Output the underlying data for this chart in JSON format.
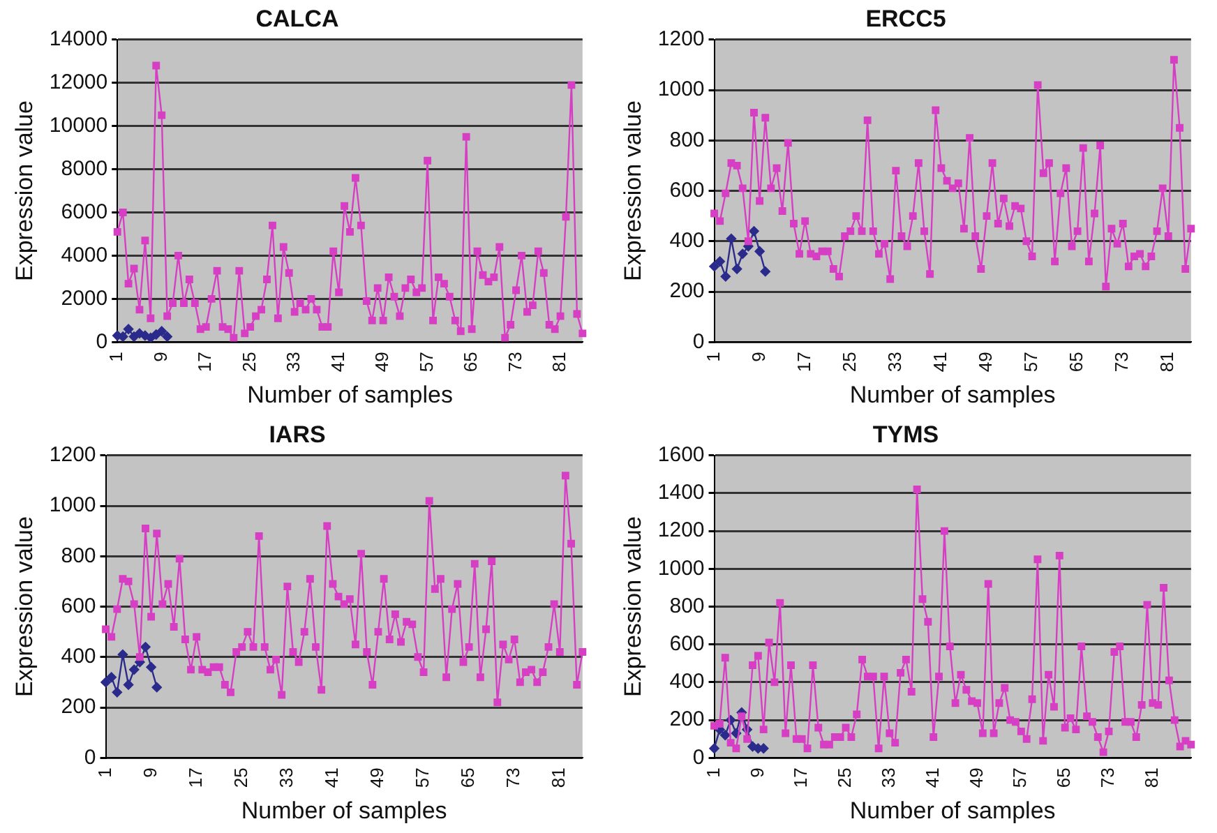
{
  "chart_data": [
    {
      "type": "line",
      "title": "CALCA",
      "xlabel": "Number of samples",
      "ylabel": "Expression value",
      "ylim": [
        0,
        14000
      ],
      "yticks": [
        0,
        2000,
        4000,
        6000,
        8000,
        10000,
        12000,
        14000
      ],
      "grid": "y",
      "marker": "square",
      "categories": [
        "1",
        null,
        null,
        null,
        null,
        null,
        null,
        null,
        "9",
        null,
        null,
        null,
        null,
        null,
        null,
        null,
        "17",
        null,
        null,
        null,
        null,
        null,
        null,
        null,
        "25",
        null,
        null,
        null,
        null,
        null,
        null,
        null,
        "33",
        null,
        null,
        null,
        null,
        null,
        null,
        null,
        "41",
        null,
        null,
        null,
        null,
        null,
        null,
        null,
        "49",
        null,
        null,
        null,
        null,
        null,
        null,
        null,
        "57",
        null,
        null,
        null,
        null,
        null,
        null,
        null,
        "65",
        null,
        null,
        null,
        null,
        null,
        null,
        null,
        "73",
        null,
        null,
        null,
        null,
        null,
        null,
        null,
        "81",
        null,
        null,
        null,
        null
      ],
      "series": [
        {
          "color": "#d63fc4",
          "values": [
            5100,
            6000,
            2700,
            3400,
            1500,
            4700,
            1100,
            12800,
            10500,
            1200,
            1800,
            4000,
            1800,
            2900,
            1800,
            600,
            700,
            2000,
            3300,
            700,
            600,
            200,
            3300,
            400,
            700,
            1200,
            1500,
            2900,
            5400,
            1100,
            4400,
            3200,
            1400,
            1800,
            1500,
            2000,
            1500,
            700,
            700,
            4200,
            2300,
            6300,
            5100,
            7600,
            5400,
            1900,
            1000,
            2500,
            1000,
            3000,
            2100,
            1200,
            2500,
            2900,
            2300,
            2500,
            8400,
            1000,
            3000,
            2700,
            2100,
            1000,
            500,
            9500,
            600,
            4200,
            3100,
            2800,
            3000,
            4400,
            200,
            800,
            2400,
            4000,
            1400,
            1700,
            4200,
            3200,
            800,
            600,
            1200,
            5800,
            11900,
            1300,
            400
          ]
        },
        {
          "color": "#2b2b8c",
          "marker": "diamond",
          "values": [
            300,
            250,
            600,
            250,
            400,
            300,
            200,
            350,
            500,
            250,
            null,
            null,
            null,
            null,
            null,
            null,
            null,
            null,
            null,
            null,
            null,
            null,
            null,
            null,
            null,
            null,
            null,
            null,
            null,
            null,
            null,
            null,
            null,
            null,
            null,
            null,
            null,
            null,
            null,
            null,
            null,
            null,
            null,
            null,
            null,
            null,
            null,
            null,
            null,
            null,
            null,
            null,
            null,
            null,
            null,
            null,
            null,
            null,
            null,
            null,
            null,
            null,
            null,
            null,
            null,
            null,
            null,
            null,
            null,
            null,
            null,
            null,
            null,
            null,
            null,
            null,
            null,
            null,
            null,
            null,
            null,
            null,
            null,
            null,
            null
          ]
        }
      ]
    },
    {
      "type": "line",
      "title": "ERCC5",
      "xlabel": "Number of samples",
      "ylabel": "Expression value",
      "ylim": [
        0,
        1200
      ],
      "yticks": [
        0,
        200,
        400,
        600,
        800,
        1000,
        1200
      ],
      "grid": "y",
      "marker": "square",
      "categories": [
        "1",
        null,
        null,
        null,
        null,
        null,
        null,
        null,
        "9",
        null,
        null,
        null,
        null,
        null,
        null,
        null,
        "17",
        null,
        null,
        null,
        null,
        null,
        null,
        null,
        "25",
        null,
        null,
        null,
        null,
        null,
        null,
        null,
        "33",
        null,
        null,
        null,
        null,
        null,
        null,
        null,
        "41",
        null,
        null,
        null,
        null,
        null,
        null,
        null,
        "49",
        null,
        null,
        null,
        null,
        null,
        null,
        null,
        "57",
        null,
        null,
        null,
        null,
        null,
        null,
        null,
        "65",
        null,
        null,
        null,
        null,
        null,
        null,
        null,
        "73",
        null,
        null,
        null,
        null,
        null,
        null,
        null,
        "81",
        null,
        null,
        null,
        null
      ],
      "series": [
        {
          "color": "#d63fc4",
          "values": [
            510,
            480,
            590,
            710,
            700,
            610,
            400,
            910,
            560,
            890,
            610,
            690,
            520,
            790,
            470,
            350,
            480,
            350,
            340,
            360,
            360,
            290,
            260,
            420,
            440,
            500,
            440,
            880,
            440,
            350,
            390,
            250,
            680,
            420,
            380,
            500,
            710,
            440,
            270,
            920,
            690,
            640,
            610,
            630,
            450,
            810,
            420,
            290,
            500,
            710,
            470,
            570,
            460,
            540,
            530,
            400,
            340,
            1020,
            670,
            710,
            320,
            590,
            690,
            380,
            440,
            770,
            320,
            510,
            780,
            220,
            450,
            390,
            470,
            300,
            340,
            350,
            300,
            340,
            440,
            610,
            420,
            1120,
            850,
            290,
            450
          ]
        },
        {
          "color": "#2b2b8c",
          "marker": "diamond",
          "values": [
            300,
            320,
            260,
            410,
            290,
            350,
            380,
            440,
            360,
            280,
            null,
            null,
            null,
            null,
            null,
            null,
            null,
            null,
            null,
            null,
            null,
            null,
            null,
            null,
            null,
            null,
            null,
            null,
            null,
            null,
            null,
            null,
            null,
            null,
            null,
            null,
            null,
            null,
            null,
            null,
            null,
            null,
            null,
            null,
            null,
            null,
            null,
            null,
            null,
            null,
            null,
            null,
            null,
            null,
            null,
            null,
            null,
            null,
            null,
            null,
            null,
            null,
            null,
            null,
            null,
            null,
            null,
            null,
            null,
            null,
            null,
            null,
            null,
            null,
            null,
            null,
            null,
            null,
            null,
            null,
            null,
            null,
            null,
            null,
            null
          ]
        }
      ]
    },
    {
      "type": "line",
      "title": "IARS",
      "xlabel": "Number of samples",
      "ylabel": "Expression value",
      "ylim": [
        0,
        1200
      ],
      "yticks": [
        0,
        200,
        400,
        600,
        800,
        1000,
        1200
      ],
      "grid": "y",
      "marker": "square",
      "categories": [
        "1",
        null,
        null,
        null,
        null,
        null,
        null,
        null,
        "9",
        null,
        null,
        null,
        null,
        null,
        null,
        null,
        "17",
        null,
        null,
        null,
        null,
        null,
        null,
        null,
        "25",
        null,
        null,
        null,
        null,
        null,
        null,
        null,
        "33",
        null,
        null,
        null,
        null,
        null,
        null,
        null,
        "41",
        null,
        null,
        null,
        null,
        null,
        null,
        null,
        "49",
        null,
        null,
        null,
        null,
        null,
        null,
        null,
        "57",
        null,
        null,
        null,
        null,
        null,
        null,
        null,
        "65",
        null,
        null,
        null,
        null,
        null,
        null,
        null,
        "73",
        null,
        null,
        null,
        null,
        null,
        null,
        null,
        "81",
        null,
        null,
        null,
        null
      ],
      "series": [
        {
          "color": "#d63fc4",
          "values": [
            510,
            480,
            590,
            710,
            700,
            610,
            400,
            910,
            560,
            890,
            610,
            690,
            520,
            790,
            470,
            350,
            480,
            350,
            340,
            360,
            360,
            290,
            260,
            420,
            440,
            500,
            440,
            880,
            440,
            350,
            390,
            250,
            680,
            420,
            380,
            500,
            710,
            440,
            270,
            920,
            690,
            640,
            610,
            630,
            450,
            810,
            420,
            290,
            500,
            710,
            470,
            570,
            460,
            540,
            530,
            400,
            340,
            1020,
            670,
            710,
            320,
            590,
            690,
            380,
            440,
            770,
            320,
            510,
            780,
            220,
            450,
            390,
            470,
            300,
            340,
            350,
            300,
            340,
            440,
            610,
            420,
            1120,
            850,
            290,
            420
          ]
        },
        {
          "color": "#2b2b8c",
          "marker": "diamond",
          "values": [
            300,
            320,
            260,
            410,
            290,
            350,
            380,
            440,
            360,
            280,
            null,
            null,
            null,
            null,
            null,
            null,
            null,
            null,
            null,
            null,
            null,
            null,
            null,
            null,
            null,
            null,
            null,
            null,
            null,
            null,
            null,
            null,
            null,
            null,
            null,
            null,
            null,
            null,
            null,
            null,
            null,
            null,
            null,
            null,
            null,
            null,
            null,
            null,
            null,
            null,
            null,
            null,
            null,
            null,
            null,
            null,
            null,
            null,
            null,
            null,
            null,
            null,
            null,
            null,
            null,
            null,
            null,
            null,
            null,
            null,
            null,
            null,
            null,
            null,
            null,
            null,
            null,
            null,
            null,
            null,
            null,
            null,
            null,
            null,
            null
          ]
        }
      ]
    },
    {
      "type": "line",
      "title": "TYMS",
      "xlabel": "Number of samples",
      "ylabel": "Expression value",
      "ylim": [
        0,
        1600
      ],
      "yticks": [
        0,
        200,
        400,
        600,
        800,
        1000,
        1200,
        1400,
        1600
      ],
      "grid": "y",
      "marker": "square",
      "categories": [
        "1",
        null,
        null,
        null,
        null,
        null,
        null,
        null,
        "9",
        null,
        null,
        null,
        null,
        null,
        null,
        null,
        "17",
        null,
        null,
        null,
        null,
        null,
        null,
        null,
        "25",
        null,
        null,
        null,
        null,
        null,
        null,
        null,
        "33",
        null,
        null,
        null,
        null,
        null,
        null,
        null,
        "41",
        null,
        null,
        null,
        null,
        null,
        null,
        null,
        "49",
        null,
        null,
        null,
        null,
        null,
        null,
        null,
        "57",
        null,
        null,
        null,
        null,
        null,
        null,
        null,
        "65",
        null,
        null,
        null,
        null,
        null,
        null,
        null,
        "73",
        null,
        null,
        null,
        null,
        null,
        null,
        null,
        "81",
        null,
        null,
        null,
        null,
        null,
        null,
        null
      ],
      "series": [
        {
          "color": "#d63fc4",
          "values": [
            170,
            180,
            530,
            80,
            50,
            220,
            100,
            490,
            540,
            150,
            610,
            400,
            820,
            130,
            490,
            100,
            100,
            50,
            490,
            160,
            70,
            70,
            110,
            110,
            160,
            110,
            230,
            520,
            430,
            430,
            50,
            430,
            130,
            80,
            450,
            520,
            350,
            1420,
            840,
            720,
            110,
            430,
            1200,
            590,
            290,
            440,
            360,
            300,
            290,
            130,
            920,
            130,
            290,
            370,
            200,
            190,
            140,
            100,
            310,
            1050,
            90,
            440,
            270,
            1070,
            160,
            210,
            150,
            590,
            220,
            190,
            110,
            30,
            140,
            560,
            590,
            190,
            190,
            110,
            280,
            810,
            290,
            280,
            900,
            410,
            200,
            60,
            90,
            70
          ]
        },
        {
          "color": "#2b2b8c",
          "marker": "diamond",
          "values": [
            50,
            150,
            120,
            200,
            130,
            240,
            150,
            60,
            50,
            50,
            null,
            null,
            null,
            null,
            null,
            null,
            null,
            null,
            null,
            null,
            null,
            null,
            null,
            null,
            null,
            null,
            null,
            null,
            null,
            null,
            null,
            null,
            null,
            null,
            null,
            null,
            null,
            null,
            null,
            null,
            null,
            null,
            null,
            null,
            null,
            null,
            null,
            null,
            null,
            null,
            null,
            null,
            null,
            null,
            null,
            null,
            null,
            null,
            null,
            null,
            null,
            null,
            null,
            null,
            null,
            null,
            null,
            null,
            null,
            null,
            null,
            null,
            null,
            null,
            null,
            null,
            null,
            null,
            null,
            null,
            null,
            null,
            null,
            null,
            null,
            null,
            null,
            null
          ]
        }
      ]
    }
  ]
}
